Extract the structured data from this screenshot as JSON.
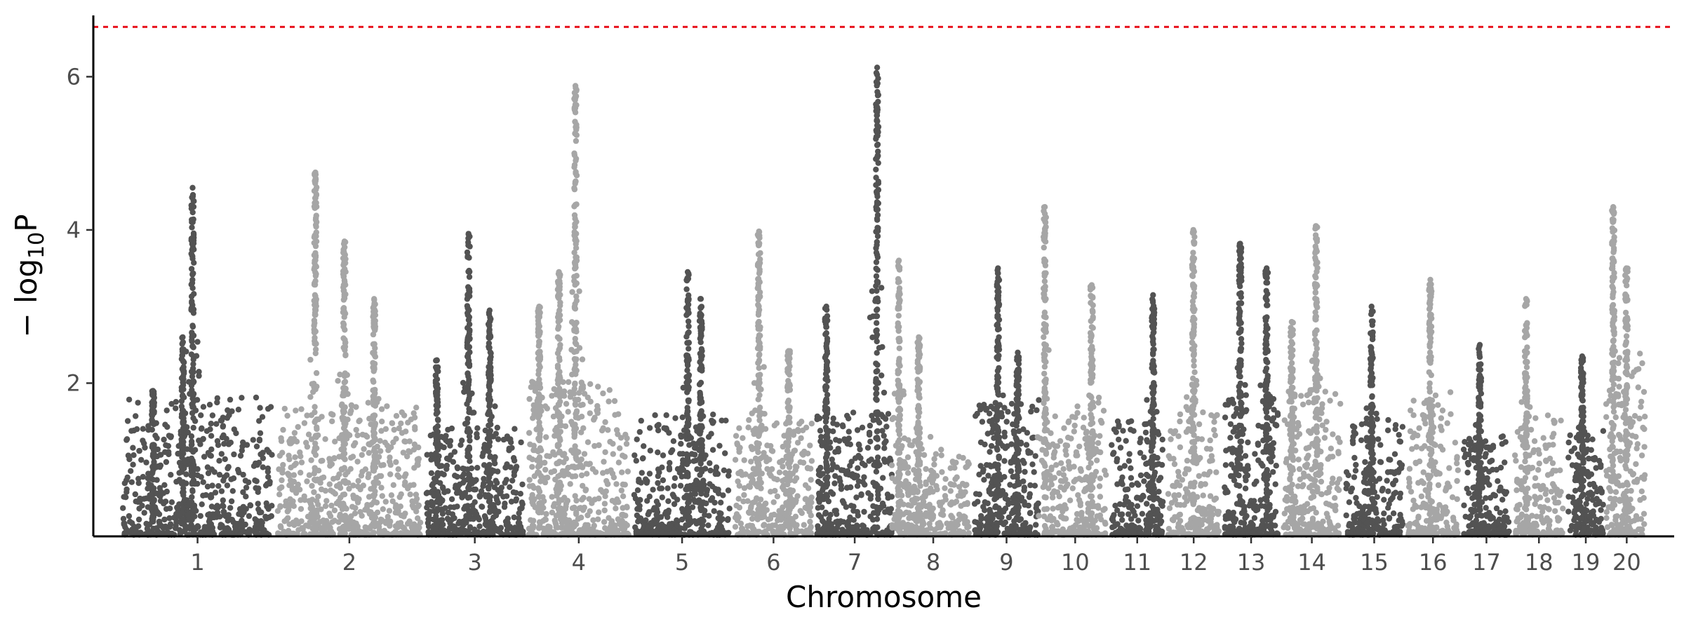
{
  "chart_data": {
    "type": "scatter",
    "subtype": "manhattan",
    "title": "",
    "xlabel": "Chromosome",
    "ylabel": "−log10P",
    "ylabel_parts": {
      "prefix": "− log",
      "subscript": "10",
      "suffix": "P"
    },
    "ylim": [
      0,
      6.8
    ],
    "yticks": [
      2,
      4,
      6
    ],
    "grid": false,
    "legend": "none",
    "threshold": {
      "value": 6.65,
      "color": "#e8121d",
      "style": "dashed"
    },
    "colors": {
      "dark": "#535353",
      "light": "#a6a6a6"
    },
    "chromosomes": [
      {
        "label": "1",
        "start": 0,
        "end": 235,
        "base_max": 1.8,
        "peaks": [
          {
            "pos": 110,
            "max": 4.55
          },
          {
            "pos": 95,
            "max": 2.6
          },
          {
            "pos": 50,
            "max": 1.9
          }
        ]
      },
      {
        "label": "2",
        "start": 235,
        "end": 460,
        "base_max": 1.7,
        "peaks": [
          {
            "pos": 296,
            "max": 4.75
          },
          {
            "pos": 340,
            "max": 3.85
          },
          {
            "pos": 385,
            "max": 3.1
          }
        ]
      },
      {
        "label": "3",
        "start": 460,
        "end": 615,
        "base_max": 1.4,
        "peaks": [
          {
            "pos": 528,
            "max": 3.95
          },
          {
            "pos": 560,
            "max": 2.95
          },
          {
            "pos": 480,
            "max": 2.3
          }
        ]
      },
      {
        "label": "4",
        "start": 615,
        "end": 775,
        "base_max": 2.0,
        "peaks": [
          {
            "pos": 690,
            "max": 5.88
          },
          {
            "pos": 665,
            "max": 3.45
          },
          {
            "pos": 635,
            "max": 3.0
          }
        ]
      },
      {
        "label": "5",
        "start": 775,
        "end": 928,
        "base_max": 1.6,
        "peaks": [
          {
            "pos": 860,
            "max": 3.45
          },
          {
            "pos": 880,
            "max": 3.1
          }
        ]
      },
      {
        "label": "6",
        "start": 928,
        "end": 1052,
        "base_max": 1.5,
        "peaks": [
          {
            "pos": 968,
            "max": 3.98
          },
          {
            "pos": 1013,
            "max": 2.42
          }
        ]
      },
      {
        "label": "7",
        "start": 1052,
        "end": 1174,
        "base_max": 1.6,
        "peaks": [
          {
            "pos": 1147,
            "max": 6.12
          },
          {
            "pos": 1070,
            "max": 3.0
          }
        ]
      },
      {
        "label": "8",
        "start": 1174,
        "end": 1290,
        "base_max": 1.3,
        "peaks": [
          {
            "pos": 1180,
            "max": 3.6
          },
          {
            "pos": 1210,
            "max": 2.6
          }
        ]
      },
      {
        "label": "9",
        "start": 1290,
        "end": 1396,
        "base_max": 1.8,
        "peaks": [
          {
            "pos": 1330,
            "max": 3.5
          },
          {
            "pos": 1360,
            "max": 2.4
          }
        ]
      },
      {
        "label": "10",
        "start": 1396,
        "end": 1498,
        "base_max": 1.7,
        "peaks": [
          {
            "pos": 1401,
            "max": 4.3
          },
          {
            "pos": 1472,
            "max": 3.28
          }
        ]
      },
      {
        "label": "11",
        "start": 1498,
        "end": 1584,
        "base_max": 1.5,
        "peaks": [
          {
            "pos": 1565,
            "max": 3.15
          }
        ]
      },
      {
        "label": "12",
        "start": 1584,
        "end": 1669,
        "base_max": 1.6,
        "peaks": [
          {
            "pos": 1626,
            "max": 4.0
          }
        ]
      },
      {
        "label": "13",
        "start": 1669,
        "end": 1758,
        "base_max": 1.8,
        "peaks": [
          {
            "pos": 1697,
            "max": 3.82
          },
          {
            "pos": 1737,
            "max": 3.5
          }
        ]
      },
      {
        "label": "14",
        "start": 1758,
        "end": 1853,
        "base_max": 2.0,
        "peaks": [
          {
            "pos": 1812,
            "max": 4.05
          },
          {
            "pos": 1775,
            "max": 2.8
          }
        ]
      },
      {
        "label": "15",
        "start": 1853,
        "end": 1947,
        "base_max": 1.5,
        "peaks": [
          {
            "pos": 1896,
            "max": 3.0
          }
        ]
      },
      {
        "label": "16",
        "start": 1947,
        "end": 2031,
        "base_max": 1.9,
        "peaks": [
          {
            "pos": 1985,
            "max": 3.35
          }
        ]
      },
      {
        "label": "17",
        "start": 2031,
        "end": 2109,
        "base_max": 1.3,
        "peaks": [
          {
            "pos": 2060,
            "max": 2.5
          }
        ]
      },
      {
        "label": "18",
        "start": 2109,
        "end": 2190,
        "base_max": 1.6,
        "peaks": [
          {
            "pos": 2130,
            "max": 3.1
          }
        ]
      },
      {
        "label": "19",
        "start": 2190,
        "end": 2251,
        "base_max": 1.4,
        "peaks": [
          {
            "pos": 2215,
            "max": 2.35
          }
        ]
      },
      {
        "label": "20",
        "start": 2251,
        "end": 2314,
        "base_max": 2.4,
        "peaks": [
          {
            "pos": 2262,
            "max": 4.3
          },
          {
            "pos": 2282,
            "max": 3.5
          }
        ]
      }
    ]
  }
}
